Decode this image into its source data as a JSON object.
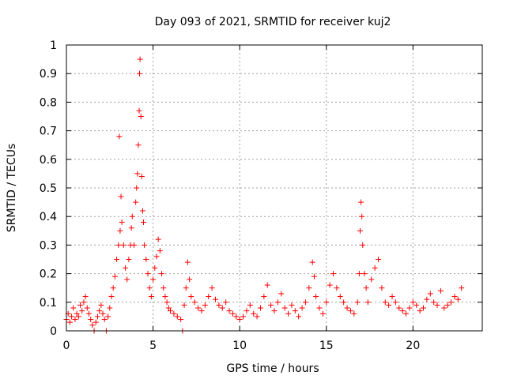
{
  "chart_data": {
    "type": "scatter",
    "title": "Day 093 of 2021, SRMTID for receiver kuj2",
    "xlabel": "GPS time / hours",
    "ylabel": "SRMTID / TECUs",
    "xlim": [
      0,
      24
    ],
    "ylim": [
      0,
      1
    ],
    "xticks": [
      0,
      5,
      10,
      15,
      20
    ],
    "xtick_labels": [
      "0",
      "5",
      "10",
      "15",
      "20"
    ],
    "yticks": [
      0,
      0.1,
      0.2,
      0.3,
      0.4,
      0.5,
      0.6,
      0.7,
      0.8,
      0.9,
      1
    ],
    "ytick_labels": [
      "0",
      "0.1",
      "0.2",
      "0.3",
      "0.4",
      "0.5",
      "0.6",
      "0.7",
      "0.8",
      "0.9",
      "1"
    ],
    "grid": true,
    "marker": "+",
    "color": "#ff0000",
    "series": [
      {
        "name": "kuj2",
        "points": [
          [
            0.0,
            0.04
          ],
          [
            0.1,
            0.06
          ],
          [
            0.2,
            0.03
          ],
          [
            0.3,
            0.05
          ],
          [
            0.4,
            0.08
          ],
          [
            0.5,
            0.04
          ],
          [
            0.6,
            0.06
          ],
          [
            0.7,
            0.05
          ],
          [
            0.8,
            0.09
          ],
          [
            0.9,
            0.07
          ],
          [
            1.0,
            0.1
          ],
          [
            1.1,
            0.12
          ],
          [
            1.2,
            0.08
          ],
          [
            1.3,
            0.06
          ],
          [
            1.4,
            0.04
          ],
          [
            1.5,
            0.02
          ],
          [
            1.6,
            0.0
          ],
          [
            1.7,
            0.03
          ],
          [
            1.8,
            0.05
          ],
          [
            1.9,
            0.07
          ],
          [
            2.0,
            0.09
          ],
          [
            2.1,
            0.06
          ],
          [
            2.2,
            0.04
          ],
          [
            2.3,
            0.0
          ],
          [
            2.4,
            0.05
          ],
          [
            2.5,
            0.08
          ],
          [
            2.6,
            0.12
          ],
          [
            2.7,
            0.15
          ],
          [
            2.8,
            0.19
          ],
          [
            2.9,
            0.25
          ],
          [
            3.0,
            0.3
          ],
          [
            3.05,
            0.68
          ],
          [
            3.1,
            0.35
          ],
          [
            3.15,
            0.47
          ],
          [
            3.2,
            0.38
          ],
          [
            3.3,
            0.3
          ],
          [
            3.4,
            0.22
          ],
          [
            3.5,
            0.18
          ],
          [
            3.6,
            0.25
          ],
          [
            3.7,
            0.3
          ],
          [
            3.75,
            0.36
          ],
          [
            3.8,
            0.4
          ],
          [
            3.9,
            0.3
          ],
          [
            4.0,
            0.45
          ],
          [
            4.05,
            0.5
          ],
          [
            4.1,
            0.55
          ],
          [
            4.15,
            0.65
          ],
          [
            4.2,
            0.77
          ],
          [
            4.22,
            0.9
          ],
          [
            4.25,
            0.95
          ],
          [
            4.3,
            0.75
          ],
          [
            4.35,
            0.54
          ],
          [
            4.4,
            0.42
          ],
          [
            4.45,
            0.38
          ],
          [
            4.5,
            0.3
          ],
          [
            4.6,
            0.25
          ],
          [
            4.7,
            0.2
          ],
          [
            4.8,
            0.15
          ],
          [
            4.9,
            0.12
          ],
          [
            5.0,
            0.18
          ],
          [
            5.1,
            0.22
          ],
          [
            5.2,
            0.26
          ],
          [
            5.3,
            0.32
          ],
          [
            5.4,
            0.28
          ],
          [
            5.5,
            0.2
          ],
          [
            5.6,
            0.15
          ],
          [
            5.7,
            0.12
          ],
          [
            5.8,
            0.1
          ],
          [
            5.9,
            0.08
          ],
          [
            6.0,
            0.07
          ],
          [
            6.2,
            0.06
          ],
          [
            6.4,
            0.05
          ],
          [
            6.6,
            0.04
          ],
          [
            6.7,
            0.0
          ],
          [
            6.8,
            0.09
          ],
          [
            6.9,
            0.15
          ],
          [
            7.0,
            0.24
          ],
          [
            7.1,
            0.18
          ],
          [
            7.2,
            0.12
          ],
          [
            7.4,
            0.1
          ],
          [
            7.6,
            0.08
          ],
          [
            7.8,
            0.07
          ],
          [
            8.0,
            0.09
          ],
          [
            8.2,
            0.12
          ],
          [
            8.4,
            0.15
          ],
          [
            8.6,
            0.11
          ],
          [
            8.8,
            0.09
          ],
          [
            9.0,
            0.08
          ],
          [
            9.2,
            0.1
          ],
          [
            9.4,
            0.07
          ],
          [
            9.6,
            0.06
          ],
          [
            9.8,
            0.05
          ],
          [
            10.0,
            0.04
          ],
          [
            10.2,
            0.05
          ],
          [
            10.4,
            0.07
          ],
          [
            10.6,
            0.09
          ],
          [
            10.8,
            0.06
          ],
          [
            11.0,
            0.05
          ],
          [
            11.2,
            0.08
          ],
          [
            11.4,
            0.12
          ],
          [
            11.6,
            0.16
          ],
          [
            11.8,
            0.09
          ],
          [
            12.0,
            0.07
          ],
          [
            12.2,
            0.1
          ],
          [
            12.4,
            0.13
          ],
          [
            12.6,
            0.08
          ],
          [
            12.8,
            0.06
          ],
          [
            13.0,
            0.09
          ],
          [
            13.2,
            0.07
          ],
          [
            13.4,
            0.05
          ],
          [
            13.6,
            0.08
          ],
          [
            13.8,
            0.1
          ],
          [
            14.0,
            0.15
          ],
          [
            14.2,
            0.24
          ],
          [
            14.3,
            0.19
          ],
          [
            14.4,
            0.12
          ],
          [
            14.6,
            0.08
          ],
          [
            14.8,
            0.06
          ],
          [
            15.0,
            0.1
          ],
          [
            15.2,
            0.16
          ],
          [
            15.4,
            0.2
          ],
          [
            15.6,
            0.15
          ],
          [
            15.8,
            0.12
          ],
          [
            16.0,
            0.1
          ],
          [
            16.2,
            0.08
          ],
          [
            16.4,
            0.07
          ],
          [
            16.6,
            0.06
          ],
          [
            16.8,
            0.1
          ],
          [
            16.9,
            0.2
          ],
          [
            16.95,
            0.35
          ],
          [
            17.0,
            0.45
          ],
          [
            17.05,
            0.4
          ],
          [
            17.1,
            0.3
          ],
          [
            17.2,
            0.2
          ],
          [
            17.3,
            0.15
          ],
          [
            17.4,
            0.1
          ],
          [
            17.6,
            0.18
          ],
          [
            17.8,
            0.22
          ],
          [
            18.0,
            0.25
          ],
          [
            18.2,
            0.15
          ],
          [
            18.4,
            0.1
          ],
          [
            18.6,
            0.09
          ],
          [
            18.8,
            0.12
          ],
          [
            19.0,
            0.1
          ],
          [
            19.2,
            0.08
          ],
          [
            19.4,
            0.07
          ],
          [
            19.6,
            0.06
          ],
          [
            19.8,
            0.08
          ],
          [
            20.0,
            0.1
          ],
          [
            20.2,
            0.09
          ],
          [
            20.4,
            0.07
          ],
          [
            20.6,
            0.08
          ],
          [
            20.8,
            0.11
          ],
          [
            21.0,
            0.13
          ],
          [
            21.2,
            0.1
          ],
          [
            21.4,
            0.09
          ],
          [
            21.6,
            0.14
          ],
          [
            21.8,
            0.08
          ],
          [
            22.0,
            0.09
          ],
          [
            22.2,
            0.1
          ],
          [
            22.4,
            0.12
          ],
          [
            22.6,
            0.11
          ],
          [
            22.8,
            0.15
          ]
        ]
      }
    ]
  }
}
